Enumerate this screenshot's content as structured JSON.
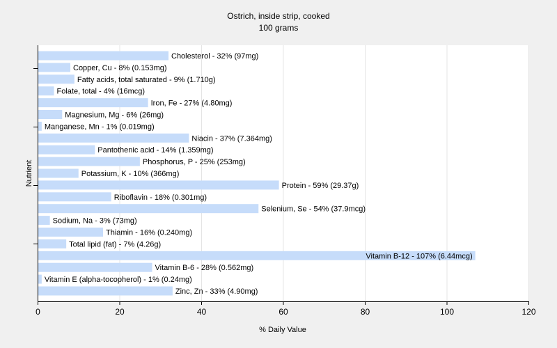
{
  "chart_data": {
    "type": "bar",
    "orientation": "horizontal",
    "title": "Ostrich, inside strip, cooked",
    "subtitle": "100 grams",
    "xlabel": "% Daily Value",
    "ylabel": "Nutrient",
    "xlim": [
      0,
      120
    ],
    "xticks": [
      0,
      20,
      40,
      60,
      80,
      100,
      120
    ],
    "grid": true,
    "bar_color": "#c6dcfa",
    "background_color": "#f0f0f0",
    "plot_color": "#ffffff",
    "categories": [
      "Cholesterol",
      "Copper, Cu",
      "Fatty acids, total saturated",
      "Folate, total",
      "Iron, Fe",
      "Magnesium, Mg",
      "Manganese, Mn",
      "Niacin",
      "Pantothenic acid",
      "Phosphorus, P",
      "Potassium, K",
      "Protein",
      "Riboflavin",
      "Selenium, Se",
      "Sodium, Na",
      "Thiamin",
      "Total lipid (fat)",
      "Vitamin B-12",
      "Vitamin B-6",
      "Vitamin E (alpha-tocopherol)",
      "Zinc, Zn"
    ],
    "values": [
      32,
      8,
      9,
      4,
      27,
      6,
      1,
      37,
      14,
      25,
      10,
      59,
      18,
      54,
      3,
      16,
      7,
      107,
      28,
      1,
      33
    ],
    "labels": [
      "Cholesterol - 32% (97mg)",
      "Copper, Cu - 8% (0.153mg)",
      "Fatty acids, total saturated - 9% (1.710g)",
      "Folate, total - 4% (16mcg)",
      "Iron, Fe - 27% (4.80mg)",
      "Magnesium, Mg - 6% (26mg)",
      "Manganese, Mn - 1% (0.019mg)",
      "Niacin - 37% (7.364mg)",
      "Pantothenic acid - 14% (1.359mg)",
      "Phosphorus, P - 25% (253mg)",
      "Potassium, K - 10% (366mg)",
      "Protein - 59% (29.37g)",
      "Riboflavin - 18% (0.301mg)",
      "Selenium, Se - 54% (37.9mcg)",
      "Sodium, Na - 3% (73mg)",
      "Thiamin - 16% (0.240mg)",
      "Total lipid (fat) - 7% (4.26g)",
      "Vitamin B-12 - 107% (6.44mcg)",
      "Vitamin B-6 - 28% (0.562mg)",
      "Vitamin E (alpha-tocopherol) - 1% (0.24mg)",
      "Zinc, Zn - 33% (4.90mg)"
    ]
  }
}
